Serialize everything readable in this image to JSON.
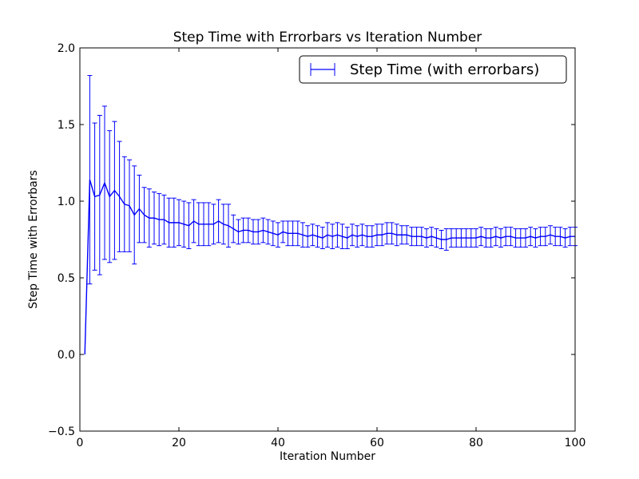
{
  "chart_data": {
    "type": "line",
    "title": "Step Time with Errorbars vs Iteration Number",
    "xlabel": "Iteration Number",
    "ylabel": "Step Time with Errorbars",
    "xlim": [
      0,
      100
    ],
    "ylim": [
      -0.5,
      2.0
    ],
    "xticks": [
      0,
      20,
      40,
      60,
      80,
      100
    ],
    "xtick_labels": [
      "0",
      "20",
      "40",
      "60",
      "80",
      "100"
    ],
    "yticks": [
      -0.5,
      0.0,
      0.5,
      1.0,
      1.5,
      2.0
    ],
    "ytick_labels": [
      "−0.5",
      "0.0",
      "0.5",
      "1.0",
      "1.5",
      "2.0"
    ],
    "grid": false,
    "legend_position": "top-right",
    "series": [
      {
        "name": "Step Time (with errorbars)",
        "color": "#0000ff",
        "x": [
          1,
          2,
          3,
          4,
          5,
          6,
          7,
          8,
          9,
          10,
          11,
          12,
          13,
          14,
          15,
          16,
          17,
          18,
          19,
          20,
          21,
          22,
          23,
          24,
          25,
          26,
          27,
          28,
          29,
          30,
          31,
          32,
          33,
          34,
          35,
          36,
          37,
          38,
          39,
          40,
          41,
          42,
          43,
          44,
          45,
          46,
          47,
          48,
          49,
          50,
          51,
          52,
          53,
          54,
          55,
          56,
          57,
          58,
          59,
          60,
          61,
          62,
          63,
          64,
          65,
          66,
          67,
          68,
          69,
          70,
          71,
          72,
          73,
          74,
          75,
          76,
          77,
          78,
          79,
          80,
          81,
          82,
          83,
          84,
          85,
          86,
          87,
          88,
          89,
          90,
          91,
          92,
          93,
          94,
          95,
          96,
          97,
          98,
          99,
          100
        ],
        "y": [
          0.0,
          1.14,
          1.03,
          1.04,
          1.12,
          1.03,
          1.07,
          1.03,
          0.98,
          0.97,
          0.91,
          0.95,
          0.91,
          0.89,
          0.89,
          0.88,
          0.88,
          0.86,
          0.86,
          0.86,
          0.85,
          0.84,
          0.87,
          0.85,
          0.85,
          0.85,
          0.85,
          0.87,
          0.85,
          0.84,
          0.82,
          0.8,
          0.81,
          0.81,
          0.8,
          0.8,
          0.81,
          0.8,
          0.79,
          0.78,
          0.8,
          0.79,
          0.79,
          0.79,
          0.78,
          0.77,
          0.78,
          0.77,
          0.76,
          0.78,
          0.77,
          0.78,
          0.77,
          0.76,
          0.78,
          0.77,
          0.78,
          0.77,
          0.77,
          0.78,
          0.78,
          0.79,
          0.79,
          0.78,
          0.78,
          0.78,
          0.77,
          0.77,
          0.77,
          0.76,
          0.77,
          0.76,
          0.75,
          0.75,
          0.76,
          0.76,
          0.76,
          0.76,
          0.76,
          0.76,
          0.77,
          0.76,
          0.76,
          0.77,
          0.76,
          0.77,
          0.77,
          0.76,
          0.76,
          0.76,
          0.77,
          0.76,
          0.77,
          0.77,
          0.78,
          0.77,
          0.77,
          0.76,
          0.77,
          0.77
        ],
        "err": [
          0.0,
          0.68,
          0.48,
          0.52,
          0.5,
          0.43,
          0.45,
          0.36,
          0.31,
          0.3,
          0.32,
          0.22,
          0.18,
          0.19,
          0.17,
          0.17,
          0.16,
          0.16,
          0.16,
          0.15,
          0.15,
          0.15,
          0.14,
          0.14,
          0.14,
          0.14,
          0.13,
          0.14,
          0.13,
          0.14,
          0.09,
          0.08,
          0.08,
          0.08,
          0.08,
          0.08,
          0.08,
          0.08,
          0.08,
          0.08,
          0.07,
          0.08,
          0.08,
          0.08,
          0.08,
          0.07,
          0.07,
          0.07,
          0.07,
          0.08,
          0.08,
          0.08,
          0.08,
          0.07,
          0.07,
          0.07,
          0.07,
          0.07,
          0.07,
          0.07,
          0.07,
          0.07,
          0.07,
          0.07,
          0.06,
          0.06,
          0.06,
          0.06,
          0.06,
          0.06,
          0.06,
          0.06,
          0.06,
          0.07,
          0.06,
          0.06,
          0.06,
          0.06,
          0.06,
          0.06,
          0.06,
          0.06,
          0.06,
          0.06,
          0.06,
          0.06,
          0.06,
          0.06,
          0.06,
          0.06,
          0.06,
          0.06,
          0.06,
          0.06,
          0.06,
          0.06,
          0.06,
          0.06,
          0.06,
          0.06
        ]
      }
    ]
  }
}
